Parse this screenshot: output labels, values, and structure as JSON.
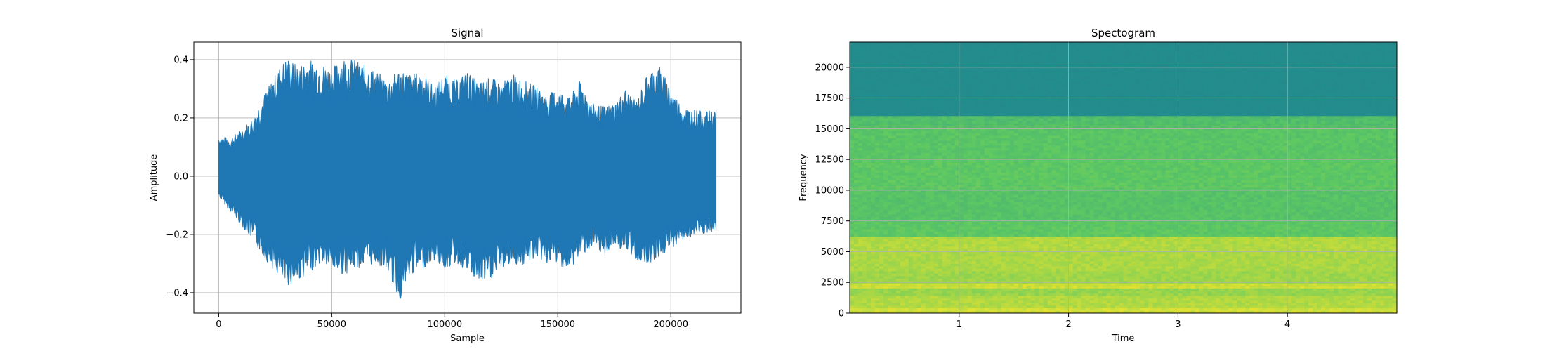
{
  "chart_data": [
    {
      "type": "line",
      "title": "Signal",
      "xlabel": "Sample",
      "ylabel": "Amplitude",
      "xlim": [
        -11000,
        231000
      ],
      "ylim": [
        -0.47,
        0.46
      ],
      "xticks": [
        0,
        50000,
        100000,
        150000,
        200000
      ],
      "xtick_labels": [
        "0",
        "50000",
        "100000",
        "150000",
        "200000"
      ],
      "yticks": [
        -0.4,
        -0.2,
        0.0,
        0.2,
        0.4
      ],
      "ytick_labels": [
        "−0.4",
        "−0.2",
        "0.0",
        "0.2",
        "0.4"
      ],
      "grid": true,
      "color": "#1f77b4",
      "series": [
        {
          "x": [
            0,
            5000,
            10000,
            15000,
            20000,
            25000,
            30000,
            35000,
            40000,
            45000,
            50000,
            55000,
            60000,
            65000,
            70000,
            75000,
            80000,
            85000,
            90000,
            95000,
            100000,
            105000,
            110000,
            115000,
            120000,
            125000,
            130000,
            135000,
            140000,
            145000,
            150000,
            155000,
            160000,
            165000,
            170000,
            175000,
            180000,
            185000,
            190000,
            195000,
            200000,
            205000,
            210000,
            215000,
            220000
          ],
          "upper": [
            0.14,
            0.13,
            0.16,
            0.2,
            0.28,
            0.35,
            0.41,
            0.38,
            0.4,
            0.39,
            0.37,
            0.41,
            0.4,
            0.38,
            0.36,
            0.33,
            0.37,
            0.35,
            0.36,
            0.31,
            0.35,
            0.33,
            0.36,
            0.32,
            0.34,
            0.32,
            0.35,
            0.33,
            0.31,
            0.28,
            0.3,
            0.27,
            0.33,
            0.25,
            0.24,
            0.25,
            0.3,
            0.26,
            0.36,
            0.38,
            0.3,
            0.24,
            0.23,
            0.22,
            0.23
          ],
          "lower": [
            -0.07,
            -0.12,
            -0.17,
            -0.22,
            -0.28,
            -0.33,
            -0.38,
            -0.36,
            -0.33,
            -0.3,
            -0.32,
            -0.34,
            -0.32,
            -0.31,
            -0.3,
            -0.33,
            -0.43,
            -0.34,
            -0.32,
            -0.29,
            -0.32,
            -0.3,
            -0.33,
            -0.37,
            -0.36,
            -0.32,
            -0.3,
            -0.31,
            -0.28,
            -0.3,
            -0.3,
            -0.33,
            -0.27,
            -0.25,
            -0.28,
            -0.24,
            -0.26,
            -0.29,
            -0.3,
            -0.28,
            -0.25,
            -0.22,
            -0.21,
            -0.2,
            -0.2
          ]
        }
      ]
    },
    {
      "type": "heatmap",
      "title": "Spectogram",
      "xlabel": "Time",
      "ylabel": "Frequency",
      "xlim": [
        0,
        5.0
      ],
      "ylim": [
        0,
        22050
      ],
      "xticks": [
        1,
        2,
        3,
        4
      ],
      "xtick_labels": [
        "1",
        "2",
        "3",
        "4"
      ],
      "yticks": [
        0,
        2500,
        5000,
        7500,
        10000,
        12500,
        15000,
        17500,
        20000
      ],
      "ytick_labels": [
        "0",
        "2500",
        "5000",
        "7500",
        "10000",
        "12500",
        "15000",
        "17500",
        "20000"
      ],
      "grid": true,
      "colormap": "viridis",
      "bands": [
        {
          "from": 0,
          "to": 500,
          "level": 0.93
        },
        {
          "from": 500,
          "to": 1500,
          "level": 0.88
        },
        {
          "from": 1500,
          "to": 2100,
          "level": 0.84
        },
        {
          "from": 2100,
          "to": 2400,
          "level": 0.92
        },
        {
          "from": 2400,
          "to": 3500,
          "level": 0.85
        },
        {
          "from": 3500,
          "to": 5000,
          "level": 0.87
        },
        {
          "from": 5000,
          "to": 6300,
          "level": 0.88
        },
        {
          "from": 6300,
          "to": 7500,
          "level": 0.74
        },
        {
          "from": 7500,
          "to": 10000,
          "level": 0.72
        },
        {
          "from": 10000,
          "to": 12500,
          "level": 0.74
        },
        {
          "from": 12500,
          "to": 15000,
          "level": 0.73
        },
        {
          "from": 15000,
          "to": 16000,
          "level": 0.7
        },
        {
          "from": 16000,
          "to": 22050,
          "level": 0.48
        }
      ]
    }
  ]
}
